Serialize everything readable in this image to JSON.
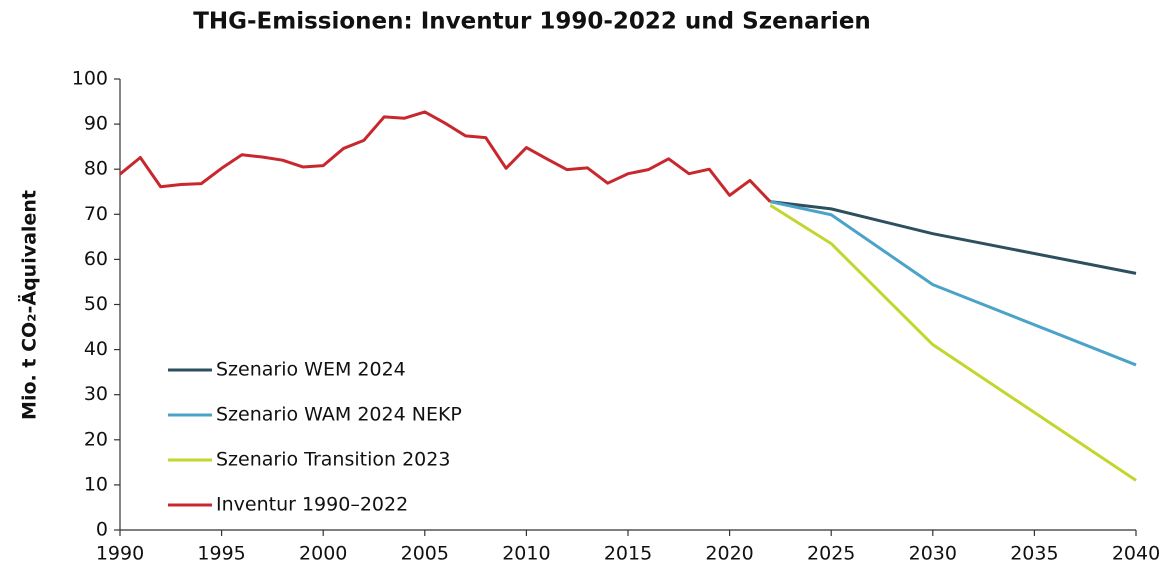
{
  "chart_data": {
    "type": "line",
    "title": "THG-Emissionen: Inventur 1990-2022 und Szenarien",
    "y_label": "Mio. t CO₂-Äquivalent",
    "xlim": [
      1990,
      2040
    ],
    "xticks": [
      1990,
      1995,
      2000,
      2005,
      2010,
      2015,
      2020,
      2025,
      2030,
      2035,
      2040
    ],
    "ylim": [
      0,
      100
    ],
    "yticks": [
      0,
      10,
      20,
      30,
      40,
      50,
      60,
      70,
      80,
      90,
      100
    ],
    "grid": false,
    "legend": "lower left",
    "series": [
      {
        "name": "Szenario WEM 2024",
        "color": "#2e4f5e",
        "x": [
          2022,
          2025,
          2030,
          2040
        ],
        "values": [
          72.8,
          71.2,
          65.7,
          56.9
        ]
      },
      {
        "name": "Szenario WAM 2024 NEKP",
        "color": "#4ba3c7",
        "x": [
          2022,
          2025,
          2030,
          2040
        ],
        "values": [
          72.8,
          69.9,
          54.4,
          36.6
        ]
      },
      {
        "name": "Szenario Transition 2023",
        "color": "#c3d62e",
        "x": [
          2022,
          2025,
          2030,
          2040
        ],
        "values": [
          72.0,
          63.5,
          41.1,
          11.0
        ]
      },
      {
        "name": "Inventur 1990–2022",
        "color": "#c8282d",
        "x": [
          1990,
          1991,
          1992,
          1993,
          1994,
          1995,
          1996,
          1997,
          1998,
          1999,
          2000,
          2001,
          2002,
          2003,
          2004,
          2005,
          2006,
          2007,
          2008,
          2009,
          2010,
          2011,
          2012,
          2013,
          2014,
          2015,
          2016,
          2017,
          2018,
          2019,
          2020,
          2021,
          2022
        ],
        "values": [
          78.9,
          82.6,
          76.1,
          76.6,
          76.8,
          80.2,
          83.2,
          82.7,
          82.0,
          80.5,
          80.8,
          84.6,
          86.4,
          91.6,
          91.3,
          92.7,
          90.2,
          87.4,
          87.0,
          80.2,
          84.8,
          82.3,
          79.9,
          80.3,
          76.9,
          79.0,
          79.9,
          82.3,
          79.0,
          80.0,
          74.2,
          77.5,
          72.8
        ]
      }
    ]
  }
}
